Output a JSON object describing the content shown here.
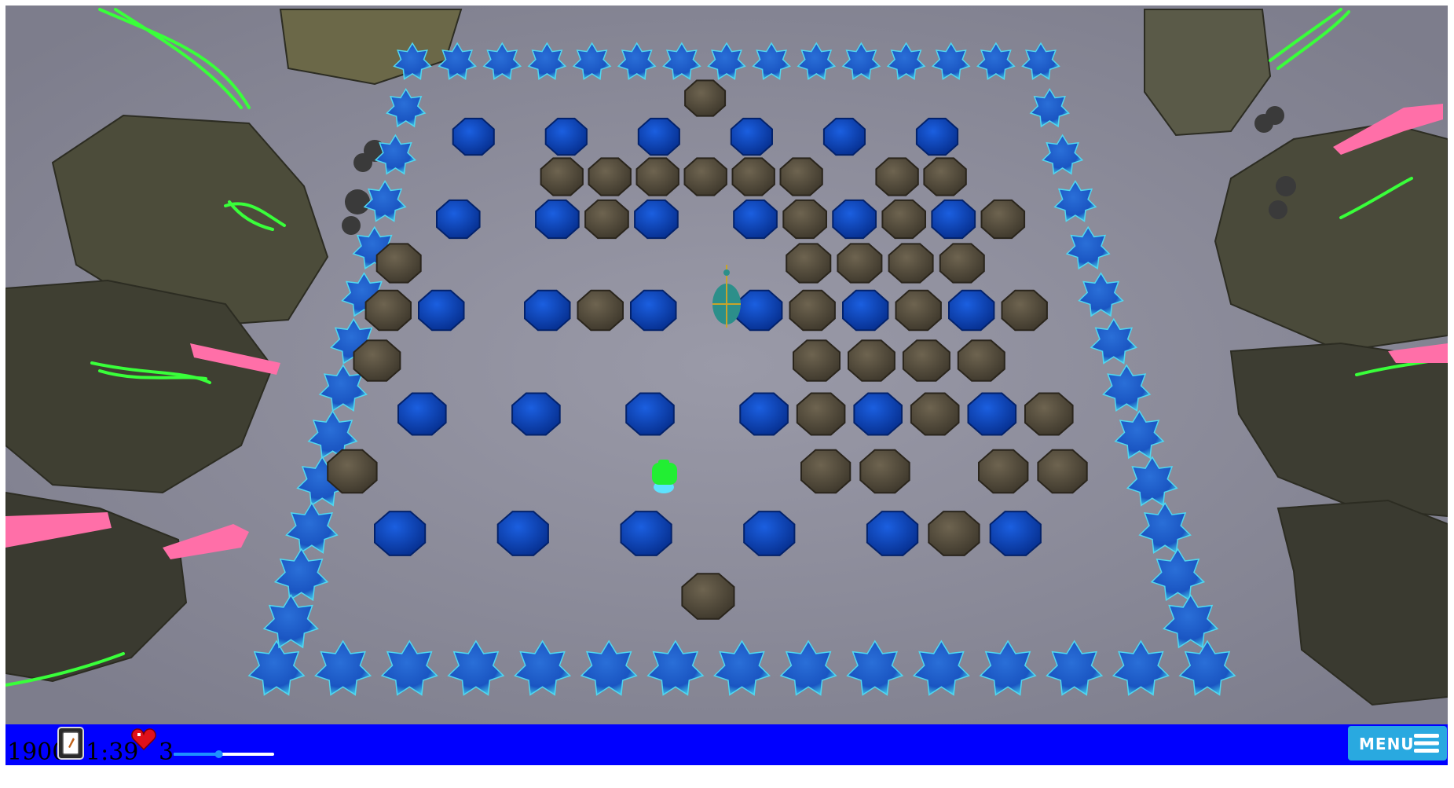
{
  "hud": {
    "score": "1900",
    "timer": "1:39",
    "lives": "3",
    "volume_level": 0.45,
    "menu_label": "MENU"
  },
  "icons": {
    "card": "card-icon",
    "heart": "heart-icon",
    "menu": "hamburger-menu-icon"
  },
  "colors": {
    "hud_bar": "#0000ff",
    "menu_button": "#29a9e0",
    "blue_block": "#0a3fb5",
    "crystal": "#1e7fd8",
    "boulder": "#5a5240",
    "floor": "#8c8c9a",
    "player": "#22ee33"
  }
}
